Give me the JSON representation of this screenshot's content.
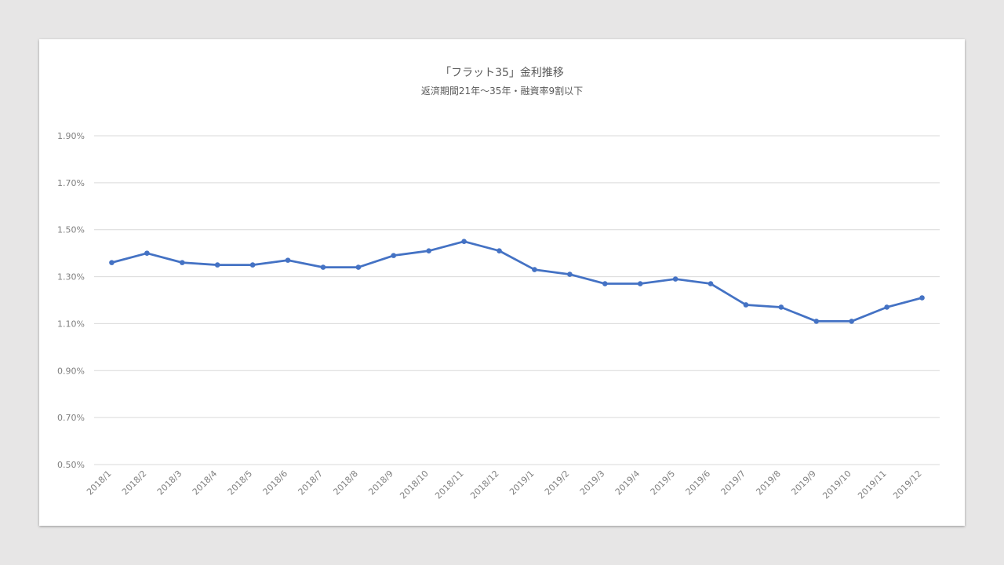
{
  "chart_data": {
    "type": "line",
    "title": "「フラット35」金利推移",
    "subtitle": "返済期間21年～35年・融資率9割以下",
    "xlabel": "",
    "ylabel": "",
    "ylim": [
      0.5,
      1.9
    ],
    "yticks": [
      "0.50%",
      "0.70%",
      "0.90%",
      "1.10%",
      "1.30%",
      "1.50%",
      "1.70%",
      "1.90%"
    ],
    "ytick_values": [
      0.5,
      0.7,
      0.9,
      1.1,
      1.3,
      1.5,
      1.7,
      1.9
    ],
    "grid": true,
    "legend": "none",
    "categories": [
      "2018/1",
      "2018/2",
      "2018/3",
      "2018/4",
      "2018/5",
      "2018/6",
      "2018/7",
      "2018/8",
      "2018/9",
      "2018/10",
      "2018/11",
      "2018/12",
      "2019/1",
      "2019/2",
      "2019/3",
      "2019/4",
      "2019/5",
      "2019/6",
      "2019/7",
      "2019/8",
      "2019/9",
      "2019/10",
      "2019/11",
      "2019/12"
    ],
    "series": [
      {
        "color": "#4472c4",
        "values": [
          1.36,
          1.4,
          1.36,
          1.35,
          1.35,
          1.37,
          1.34,
          1.34,
          1.39,
          1.41,
          1.45,
          1.41,
          1.33,
          1.31,
          1.27,
          1.27,
          1.29,
          1.27,
          1.18,
          1.17,
          1.11,
          1.11,
          1.17,
          1.21
        ]
      }
    ]
  }
}
